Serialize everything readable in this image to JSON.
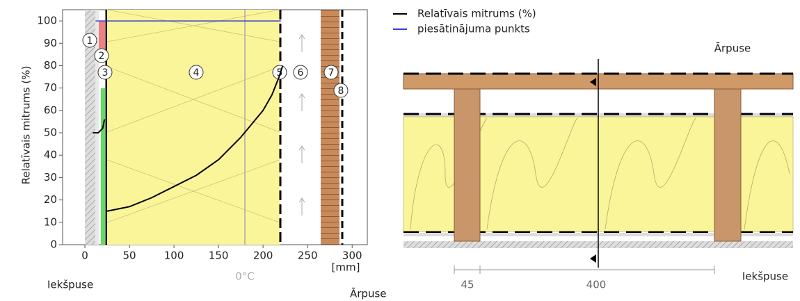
{
  "chart_data": {
    "type": "line",
    "xlabel": "[mm]",
    "ylabel": "Relatīvais mitrums (%)",
    "xlim": [
      -25,
      317
    ],
    "ylim": [
      0,
      105
    ],
    "xticks": [
      0,
      50,
      100,
      150,
      200,
      250,
      300
    ],
    "yticks": [
      0,
      10,
      20,
      30,
      40,
      50,
      60,
      70,
      80,
      90,
      100
    ],
    "series": [
      {
        "name": "Relatīvais mitrums (%)",
        "color": "#000000",
        "x": [
          9,
          15,
          20,
          22,
          null,
          25,
          50,
          75,
          100,
          125,
          150,
          175,
          200,
          210,
          218,
          222
        ],
        "values": [
          50,
          50,
          52,
          56,
          null,
          15,
          17,
          21,
          26,
          31,
          38,
          48,
          60,
          67,
          75,
          80
        ]
      },
      {
        "name": "piesātinājuma punkts",
        "color": "#3b3bd0",
        "x": [
          12,
          220
        ],
        "values": [
          100,
          100
        ]
      }
    ],
    "annotations": [
      "1",
      "2",
      "3",
      "4",
      "5",
      "6",
      "7",
      "8",
      "0°C",
      "Iekšpuse",
      "Ārpuse"
    ]
  },
  "diagram": {
    "top_label": "Ārpuse",
    "bottom_label": "Iekšpuse",
    "dimensions": [
      "45",
      "400"
    ]
  }
}
